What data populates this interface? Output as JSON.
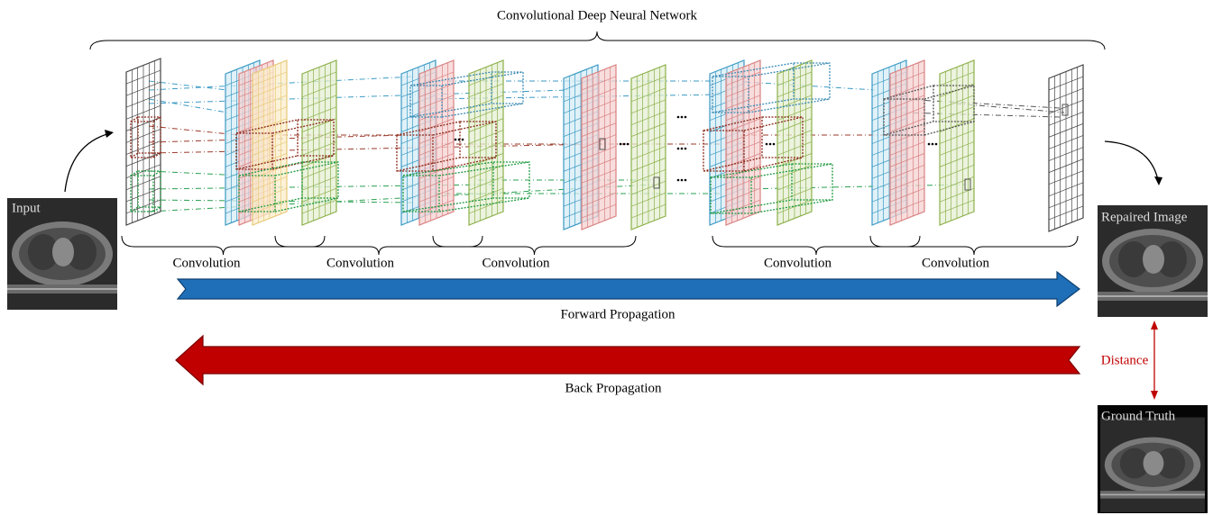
{
  "title": "Convolutional Deep Neural Network",
  "input": {
    "label": "Input"
  },
  "stages": [
    "Convolution",
    "Convolution",
    "Convolution",
    "Convolution",
    "Convolution"
  ],
  "forward": {
    "label": "Forward Propagation"
  },
  "backward": {
    "label": "Back Propagation"
  },
  "output": {
    "label": "Repaired Image"
  },
  "distance": {
    "label": "Distance"
  },
  "ground_truth": {
    "label": "Ground Truth"
  }
}
